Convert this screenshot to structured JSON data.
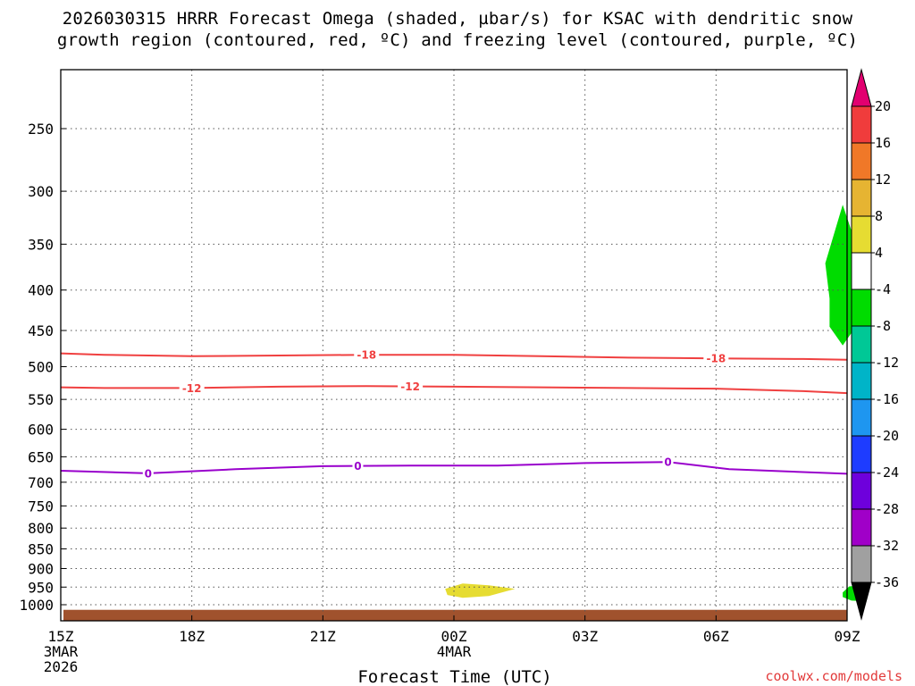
{
  "title_line1": "2026030315 HRRR Forecast Omega (shaded, µbar/s) for KSAC with dendritic snow",
  "title_line2": "growth region (contoured, red, ºC) and freezing level (contoured, purple, ºC)",
  "watermark": "coolwx.com/models",
  "chart_data": {
    "type": "contour",
    "title": "2026030315 HRRR Forecast Omega (shaded, µbar/s) for KSAC with dendritic snow growth region (contoured, red, ºC) and freezing level (contoured, purple, ºC)",
    "xlabel": "Forecast Time (UTC)",
    "ylabel": "",
    "x_hours_range": [
      0,
      18
    ],
    "x_ticks": [
      {
        "hour": 0,
        "lines": [
          "15Z",
          "3MAR",
          "2026"
        ]
      },
      {
        "hour": 3,
        "lines": [
          "18Z"
        ]
      },
      {
        "hour": 6,
        "lines": [
          "21Z"
        ]
      },
      {
        "hour": 9,
        "lines": [
          "00Z",
          "4MAR"
        ]
      },
      {
        "hour": 12,
        "lines": [
          "03Z"
        ]
      },
      {
        "hour": 15,
        "lines": [
          "06Z"
        ]
      },
      {
        "hour": 18,
        "lines": [
          "09Z"
        ]
      }
    ],
    "y_scale": "log-pressure",
    "y_range_hpa": [
      1050,
      200
    ],
    "y_ticks_hpa": [
      250,
      300,
      350,
      400,
      450,
      500,
      550,
      600,
      650,
      700,
      750,
      800,
      850,
      900,
      950,
      1000
    ],
    "grid": true,
    "contours": [
      {
        "name": "-18",
        "color": "#f04040",
        "label": "-18",
        "points": [
          [
            0,
            481
          ],
          [
            1,
            483
          ],
          [
            3,
            485
          ],
          [
            5,
            484
          ],
          [
            7,
            483
          ],
          [
            9,
            483
          ],
          [
            11,
            485
          ],
          [
            13,
            487
          ],
          [
            15,
            488
          ],
          [
            17,
            489
          ],
          [
            18,
            490
          ]
        ],
        "label_hours": [
          7,
          15
        ]
      },
      {
        "name": "-12",
        "color": "#f04040",
        "label": "-12",
        "points": [
          [
            0,
            531
          ],
          [
            1,
            532
          ],
          [
            3,
            532
          ],
          [
            5,
            530
          ],
          [
            7,
            529
          ],
          [
            9,
            530
          ],
          [
            11,
            531
          ],
          [
            13,
            532
          ],
          [
            15,
            533
          ],
          [
            17,
            537
          ],
          [
            18,
            540
          ]
        ],
        "label_hours": [
          3,
          8
        ]
      },
      {
        "name": "0",
        "color": "#9900cc",
        "label": "0",
        "points": [
          [
            0,
            677
          ],
          [
            2,
            682
          ],
          [
            4,
            674
          ],
          [
            6,
            668
          ],
          [
            8,
            667
          ],
          [
            10,
            667
          ],
          [
            12,
            662
          ],
          [
            13.9,
            660
          ],
          [
            15.3,
            674
          ],
          [
            18,
            683
          ]
        ],
        "label_hours": [
          2,
          6.8,
          13.9
        ]
      }
    ],
    "shaded_regions": [
      {
        "name": "omega-minus-4-to-minus-8-upper",
        "value_band": "-8 to -4",
        "color": "#00dc00",
        "points": [
          [
            17.5,
            370
          ],
          [
            17.9,
            312
          ],
          [
            18.35,
            370
          ],
          [
            18.25,
            410
          ],
          [
            18.2,
            445
          ],
          [
            17.9,
            470
          ],
          [
            17.6,
            445
          ],
          [
            17.6,
            410
          ]
        ]
      },
      {
        "name": "omega-4-to-8-lower",
        "value_band": "4 to 8",
        "color": "#e6dc32",
        "points": [
          [
            8.8,
            955
          ],
          [
            9.2,
            940
          ],
          [
            9.8,
            945
          ],
          [
            10.4,
            955
          ],
          [
            9.8,
            975
          ],
          [
            9.2,
            980
          ],
          [
            8.85,
            972
          ]
        ]
      },
      {
        "name": "omega-minus-4-to-minus-8-lower",
        "value_band": "-8 to -4",
        "color": "#00dc00",
        "points": [
          [
            18.05,
            948
          ],
          [
            18.35,
            945
          ],
          [
            18.45,
            945
          ],
          [
            18.45,
            990
          ],
          [
            18.1,
            988
          ],
          [
            17.9,
            978
          ],
          [
            17.9,
            965
          ]
        ]
      }
    ],
    "terrain": {
      "color": "#a0522d",
      "top_hpa": 1015
    },
    "colorbar": {
      "ticks": [
        "20",
        "16",
        "12",
        "8",
        "4",
        "-4",
        "-8",
        "-12",
        "-16",
        "-20",
        "-24",
        "-28",
        "-32",
        "-36"
      ],
      "colors": [
        "#e20070",
        "#f03c3c",
        "#f07828",
        "#e6b432",
        "#e6dc32",
        "#ffffff",
        "#00dc00",
        "#00c896",
        "#00b4c8",
        "#1e96f0",
        "#1e3cff",
        "#6e00dc",
        "#a000c8",
        "#a0a0a0",
        "#000000"
      ]
    }
  }
}
